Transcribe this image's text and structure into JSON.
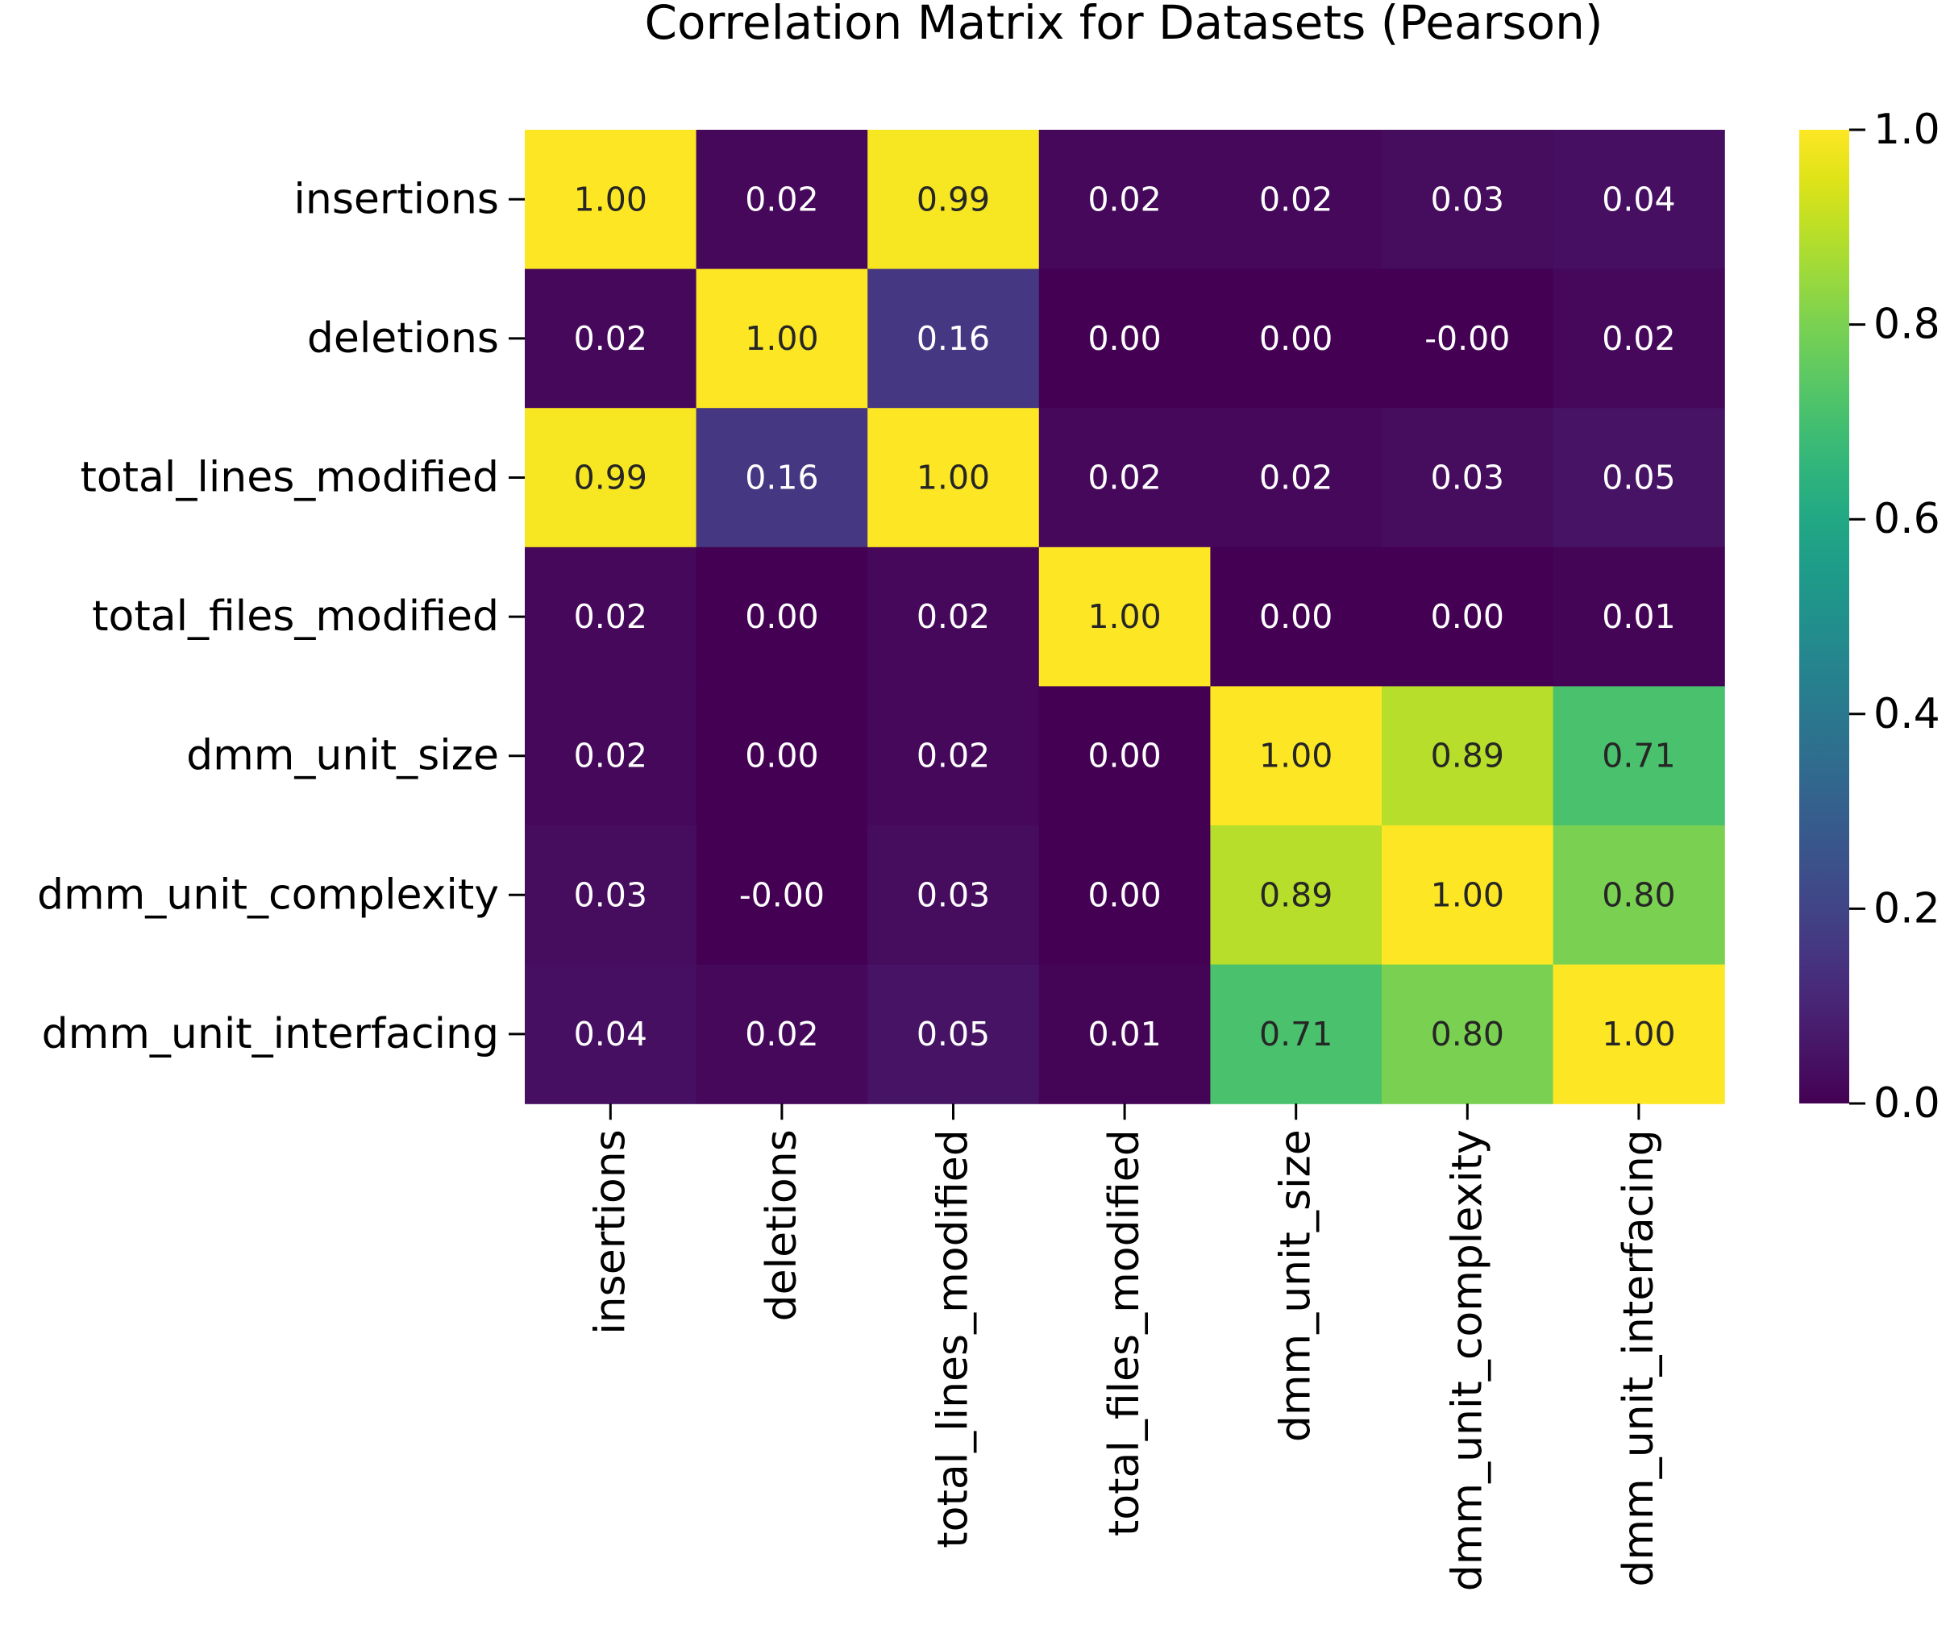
{
  "chart_data": {
    "type": "heatmap",
    "title": "Correlation Matrix for Datasets (Pearson)",
    "xlabel": "",
    "ylabel": "",
    "rows": [
      "insertions",
      "deletions",
      "total_lines_modified",
      "total_files_modified",
      "dmm_unit_size",
      "dmm_unit_complexity",
      "dmm_unit_interfacing"
    ],
    "columns": [
      "insertions",
      "deletions",
      "total_lines_modified",
      "total_files_modified",
      "dmm_unit_size",
      "dmm_unit_complexity",
      "dmm_unit_interfacing"
    ],
    "values": [
      [
        1.0,
        0.02,
        0.99,
        0.02,
        0.02,
        0.03,
        0.04
      ],
      [
        0.02,
        1.0,
        0.16,
        0.0,
        0.0,
        -0.0,
        0.02
      ],
      [
        0.99,
        0.16,
        1.0,
        0.02,
        0.02,
        0.03,
        0.05
      ],
      [
        0.02,
        0.0,
        0.02,
        1.0,
        0.0,
        0.0,
        0.01
      ],
      [
        0.02,
        0.0,
        0.02,
        0.0,
        1.0,
        0.89,
        0.71
      ],
      [
        0.03,
        -0.0,
        0.03,
        0.0,
        0.89,
        1.0,
        0.8
      ],
      [
        0.04,
        0.02,
        0.05,
        0.01,
        0.71,
        0.8,
        1.0
      ]
    ],
    "value_labels": [
      [
        "1.00",
        "0.02",
        "0.99",
        "0.02",
        "0.02",
        "0.03",
        "0.04"
      ],
      [
        "0.02",
        "1.00",
        "0.16",
        "0.00",
        "0.00",
        "-0.00",
        "0.02"
      ],
      [
        "0.99",
        "0.16",
        "1.00",
        "0.02",
        "0.02",
        "0.03",
        "0.05"
      ],
      [
        "0.02",
        "0.00",
        "0.02",
        "1.00",
        "0.00",
        "0.00",
        "0.01"
      ],
      [
        "0.02",
        "0.00",
        "0.02",
        "0.00",
        "1.00",
        "0.89",
        "0.71"
      ],
      [
        "0.03",
        "-0.00",
        "0.03",
        "0.00",
        "0.89",
        "1.00",
        "0.80"
      ],
      [
        "0.04",
        "0.02",
        "0.05",
        "0.01",
        "0.71",
        "0.80",
        "1.00"
      ]
    ],
    "colormap": "viridis",
    "vmin": 0.0,
    "vmax": 1.0,
    "colorbar": {
      "ticks": [
        0.0,
        0.2,
        0.4,
        0.6,
        0.8,
        1.0
      ],
      "tick_labels": [
        "0.0",
        "0.2",
        "0.4",
        "0.6",
        "0.8",
        "1.0"
      ]
    },
    "grid": false,
    "legend": "colorbar-right"
  }
}
